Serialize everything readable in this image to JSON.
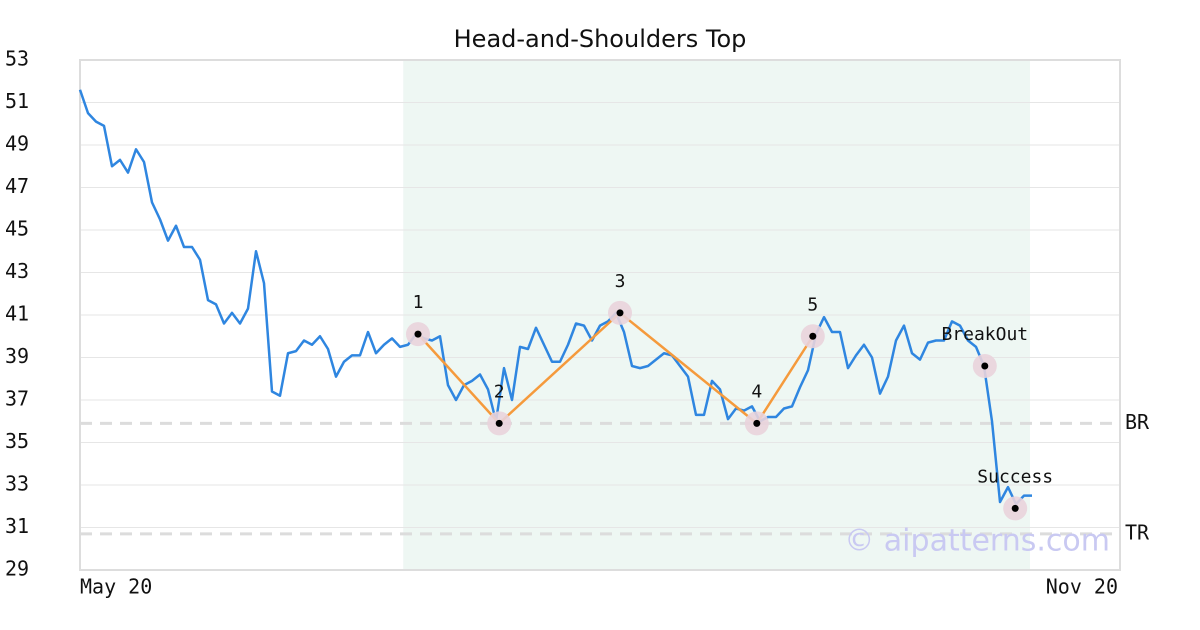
{
  "chart_data": {
    "type": "line",
    "title": "Head-and-Shoulders Top",
    "xlim": [
      0,
      130
    ],
    "xticks": [
      {
        "value": 0,
        "label": "May 20"
      },
      {
        "value": 130,
        "label": "Nov 20"
      }
    ],
    "ylim": [
      29,
      53
    ],
    "yticks": [
      29,
      31,
      33,
      35,
      37,
      39,
      41,
      43,
      45,
      47,
      49,
      51,
      53
    ],
    "grid": true,
    "series": [
      {
        "color": "#2f86e0",
        "values": [
          51.6,
          50.5,
          50.1,
          49.9,
          48.0,
          48.3,
          47.7,
          48.8,
          48.2,
          46.3,
          45.5,
          44.5,
          45.2,
          44.2,
          44.2,
          43.6,
          41.7,
          41.5,
          40.6,
          41.1,
          40.6,
          41.3,
          44.0,
          42.5,
          37.4,
          37.2,
          39.2,
          39.3,
          39.8,
          39.6,
          40.0,
          39.4,
          38.1,
          38.8,
          39.1,
          39.1,
          40.2,
          39.2,
          39.6,
          39.9,
          39.5,
          39.6,
          40.1,
          39.9,
          39.8,
          40.0,
          37.7,
          37.0,
          37.7,
          37.9,
          38.2,
          37.5,
          36.0,
          38.5,
          37.0,
          39.5,
          39.4,
          40.4,
          39.6,
          38.8,
          38.8,
          39.6,
          40.6,
          40.5,
          39.8,
          40.5,
          40.7,
          41.1,
          40.2,
          38.6,
          38.5,
          38.6,
          38.9,
          39.2,
          39.1,
          38.6,
          38.1,
          36.3,
          36.3,
          37.9,
          37.5,
          36.1,
          36.6,
          36.5,
          36.7,
          36.0,
          36.2,
          36.2,
          36.6,
          36.7,
          37.6,
          38.4,
          40.1,
          40.9,
          40.2,
          40.2,
          38.5,
          39.1,
          39.6,
          39.0,
          37.3,
          38.1,
          39.8,
          40.5,
          39.2,
          38.9,
          39.7,
          39.8,
          39.8,
          40.7,
          40.5,
          39.8,
          39.5,
          38.6,
          36.0,
          32.2,
          32.9,
          32.1,
          32.5,
          32.5
        ]
      }
    ],
    "shade": [
      40.4,
      118.75
    ],
    "shade_color": "#eef7f3",
    "pattern_color": "#f59a3c",
    "points": [
      {
        "label": "1",
        "x": 42.25,
        "y": 40.1
      },
      {
        "label": "2",
        "x": 52.4,
        "y": 35.9
      },
      {
        "label": "3",
        "x": 67.5,
        "y": 41.1
      },
      {
        "label": "4",
        "x": 84.6,
        "y": 35.9
      },
      {
        "label": "5",
        "x": 91.6,
        "y": 40.0
      },
      {
        "label": "BreakOut",
        "x": 113.1,
        "y": 38.6
      },
      {
        "label": "Success",
        "x": 116.9,
        "y": 31.9
      }
    ],
    "pattern_points": 5,
    "levels": [
      {
        "label": "BR",
        "value": 35.9
      },
      {
        "label": "TR",
        "value": 30.7
      }
    ],
    "watermark": "© aipatterns.com"
  }
}
